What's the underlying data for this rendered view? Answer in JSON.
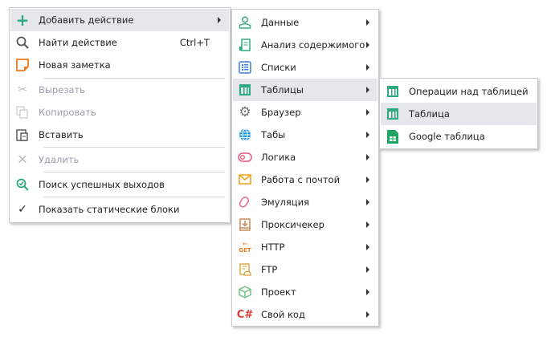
{
  "menu_main": [
    {
      "label": "Добавить действие",
      "icon": "plus-icon",
      "submenu": true,
      "highlighted": true
    },
    {
      "label": "Найти действие",
      "icon": "search-icon",
      "shortcut": "Ctrl+T"
    },
    {
      "label": "Новая заметка",
      "icon": "note-icon"
    },
    {
      "label": "Вырезать",
      "icon": "scissors-icon",
      "disabled": true
    },
    {
      "label": "Копировать",
      "icon": "copy-icon",
      "disabled": true
    },
    {
      "label": "Вставить",
      "icon": "paste-icon"
    },
    {
      "label": "Удалить",
      "icon": "delete-icon",
      "disabled": true
    },
    {
      "label": "Поиск успешных выходов",
      "icon": "search-check-icon"
    },
    {
      "label": "Показать статические блоки",
      "icon": "checkmark-icon"
    }
  ],
  "menu_actions": [
    {
      "label": "Данные",
      "icon": "user-icon"
    },
    {
      "label": "Анализ содержимого",
      "icon": "document-icon"
    },
    {
      "label": "Списки",
      "icon": "list-icon"
    },
    {
      "label": "Таблицы",
      "icon": "table-icon",
      "highlighted": true
    },
    {
      "label": "Браузер",
      "icon": "gear-icon"
    },
    {
      "label": "Табы",
      "icon": "globe-icon"
    },
    {
      "label": "Логика",
      "icon": "toggle-icon"
    },
    {
      "label": "Работа с почтой",
      "icon": "mail-icon"
    },
    {
      "label": "Эмуляция",
      "icon": "mouse-icon"
    },
    {
      "label": "Проксичекер",
      "icon": "download-box-icon"
    },
    {
      "label": "HTTP",
      "icon": "http-get-icon",
      "icon_text": "GET"
    },
    {
      "label": "FTP",
      "icon": "ftp-icon"
    },
    {
      "label": "Проект",
      "icon": "cube-icon"
    },
    {
      "label": "Свой код",
      "icon": "csharp-icon",
      "icon_text": "C#"
    }
  ],
  "menu_tables": [
    {
      "label": "Операции над таблицей",
      "icon": "table-icon"
    },
    {
      "label": "Таблица",
      "icon": "table-icon",
      "highlighted": true
    },
    {
      "label": "Google таблица",
      "icon": "google-sheets-icon"
    }
  ],
  "colors": {
    "highlight": "#e6e7ea",
    "green": "#2ea87e",
    "disabled": "#9aa0a8"
  }
}
